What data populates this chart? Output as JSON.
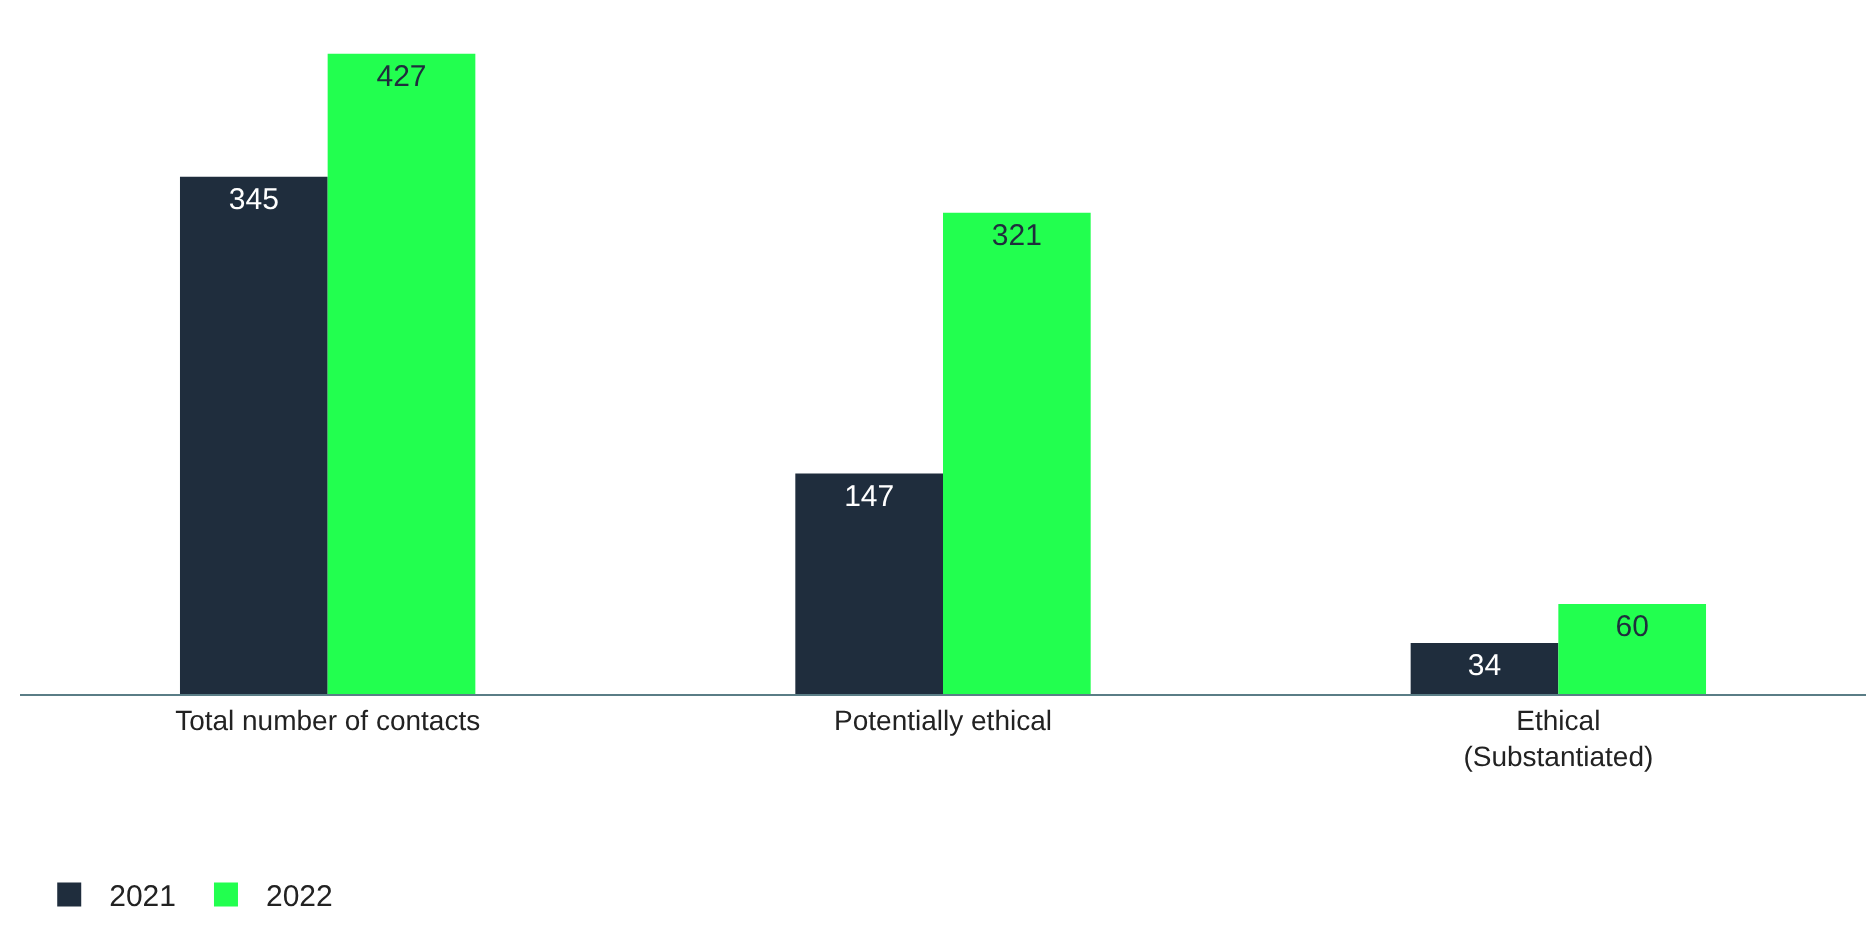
{
  "chart_data": {
    "type": "bar",
    "categories": [
      "Total number of contacts",
      "Potentially ethical",
      "Ethical\n(Substantiated)"
    ],
    "series": [
      {
        "name": "2021",
        "color": "#1f2d3d",
        "values": [
          345,
          147,
          34
        ]
      },
      {
        "name": "2022",
        "color": "#22ff4f",
        "values": [
          427,
          321,
          60
        ]
      }
    ],
    "data_labels": true,
    "legend": "bottom left",
    "grid": false
  }
}
